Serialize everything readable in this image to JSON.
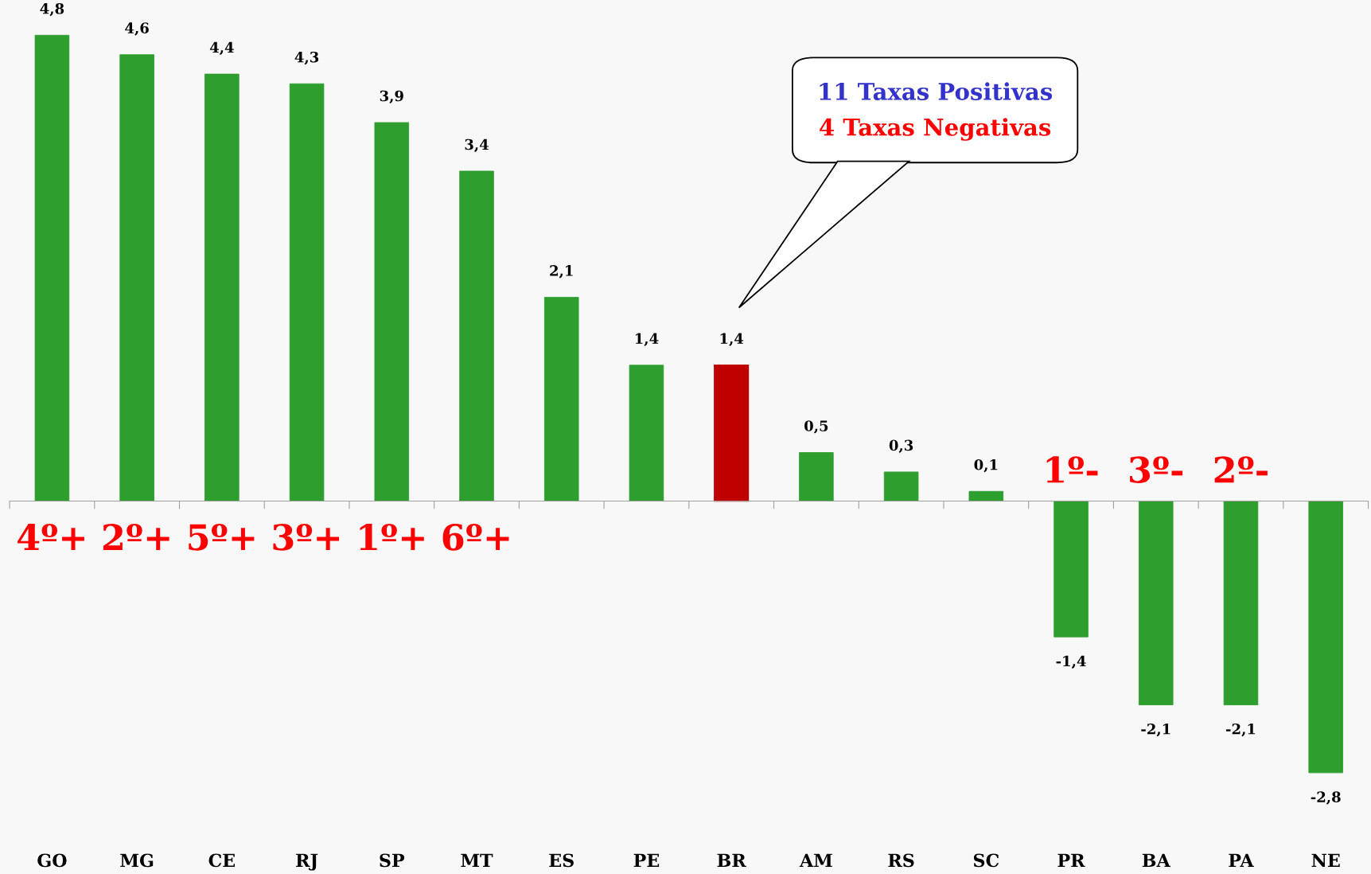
{
  "chart_data": {
    "type": "bar",
    "categories": [
      "GO",
      "MG",
      "CE",
      "RJ",
      "SP",
      "MT",
      "ES",
      "PE",
      "BR",
      "AM",
      "RS",
      "SC",
      "PR",
      "BA",
      "PA",
      "NE"
    ],
    "values": [
      4.8,
      4.6,
      4.4,
      4.3,
      3.9,
      3.4,
      2.1,
      1.4,
      1.4,
      0.5,
      0.3,
      0.1,
      -1.4,
      -2.1,
      -2.1,
      -2.8
    ],
    "value_labels": [
      "4,8",
      "4,6",
      "4,4",
      "4,3",
      "3,9",
      "3,4",
      "2,1",
      "1,4",
      "1,4",
      "0,5",
      "0,3",
      "0,1",
      "-1,4",
      "-2,1",
      "-2,1",
      "-2,8"
    ],
    "colors": [
      "#2e9e2e",
      "#2e9e2e",
      "#2e9e2e",
      "#2e9e2e",
      "#2e9e2e",
      "#2e9e2e",
      "#2e9e2e",
      "#2e9e2e",
      "#c00000",
      "#2e9e2e",
      "#2e9e2e",
      "#2e9e2e",
      "#2e9e2e",
      "#2e9e2e",
      "#2e9e2e",
      "#2e9e2e"
    ],
    "annotations": [
      "11 Taxas Positivas",
      "4 Taxas Negativas",
      {
        "text": "4º+",
        "x": "GO",
        "y": 0
      },
      {
        "text": "2º+",
        "x": "MG",
        "y": 0
      },
      {
        "text": "5º+",
        "x": "CE",
        "y": 0
      },
      {
        "text": "3º+",
        "x": "RJ",
        "y": 0
      },
      {
        "text": "1º+",
        "x": "SP",
        "y": 0
      },
      {
        "text": "6º+",
        "x": "MT",
        "y": 0
      },
      {
        "text": "1º-",
        "x": "PR",
        "y": 0
      },
      {
        "text": "3º-",
        "x": "BA",
        "y": 0
      },
      {
        "text": "2º-",
        "x": "PA",
        "y": 0
      }
    ],
    "grid": false,
    "legend": false
  }
}
